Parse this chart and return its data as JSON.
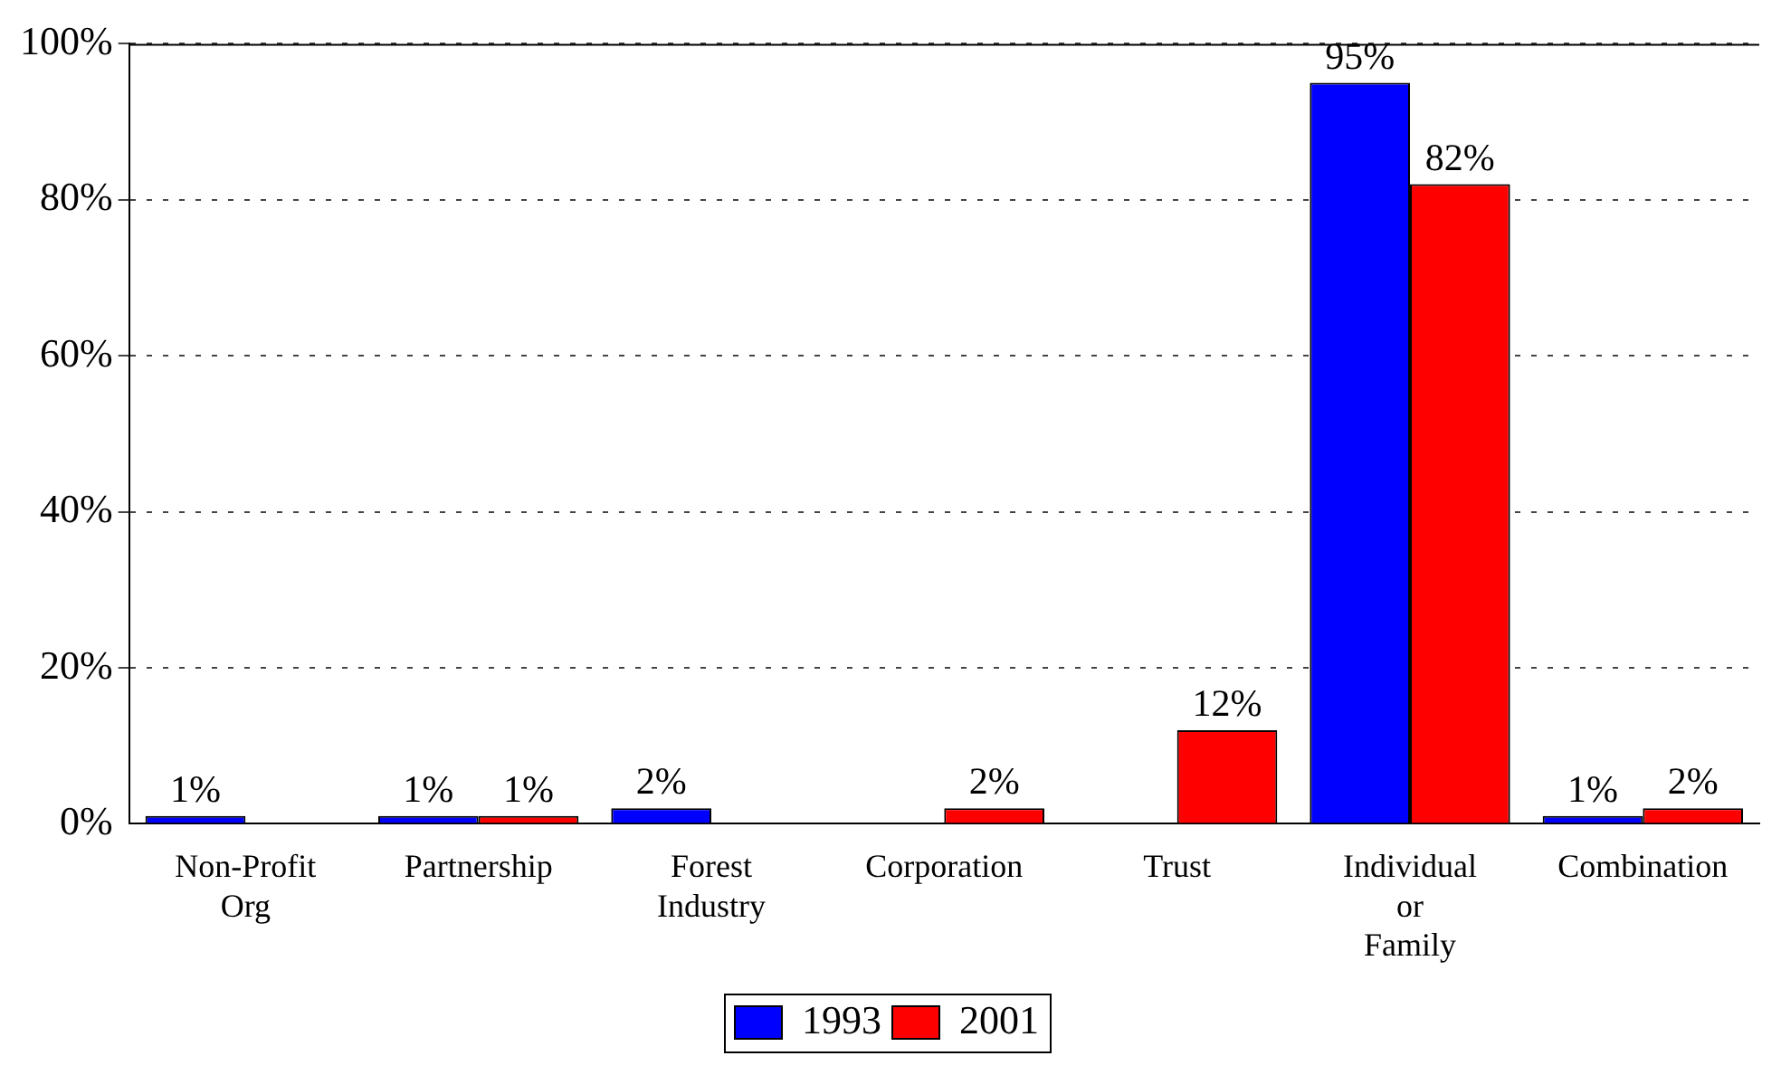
{
  "chart_data": {
    "type": "bar",
    "categories": [
      "Non-Profit Org",
      "Partnership",
      "Forest Industry",
      "Corporation",
      "Trust",
      "Individual or Family",
      "Combination"
    ],
    "series": [
      {
        "name": "1993",
        "color": "#0000ff",
        "values": [
          1,
          1,
          2,
          null,
          null,
          95,
          1
        ],
        "value_labels": [
          "1%",
          "1%",
          "2%",
          null,
          null,
          "95%",
          "1%"
        ]
      },
      {
        "name": "2001",
        "color": "#ff0000",
        "values": [
          null,
          1,
          null,
          2,
          12,
          82,
          2
        ],
        "value_labels": [
          null,
          "1%",
          null,
          "2%",
          "12%",
          "82%",
          "2%"
        ]
      }
    ],
    "ylim": [
      0,
      100
    ],
    "yticks": [
      {
        "value": 0,
        "label": "0%"
      },
      {
        "value": 20,
        "label": "20%"
      },
      {
        "value": 40,
        "label": "40%"
      },
      {
        "value": 60,
        "label": "60%"
      },
      {
        "value": 80,
        "label": "80%"
      },
      {
        "value": 100,
        "label": "100%"
      }
    ],
    "grid": "y",
    "legend": "bottom"
  }
}
